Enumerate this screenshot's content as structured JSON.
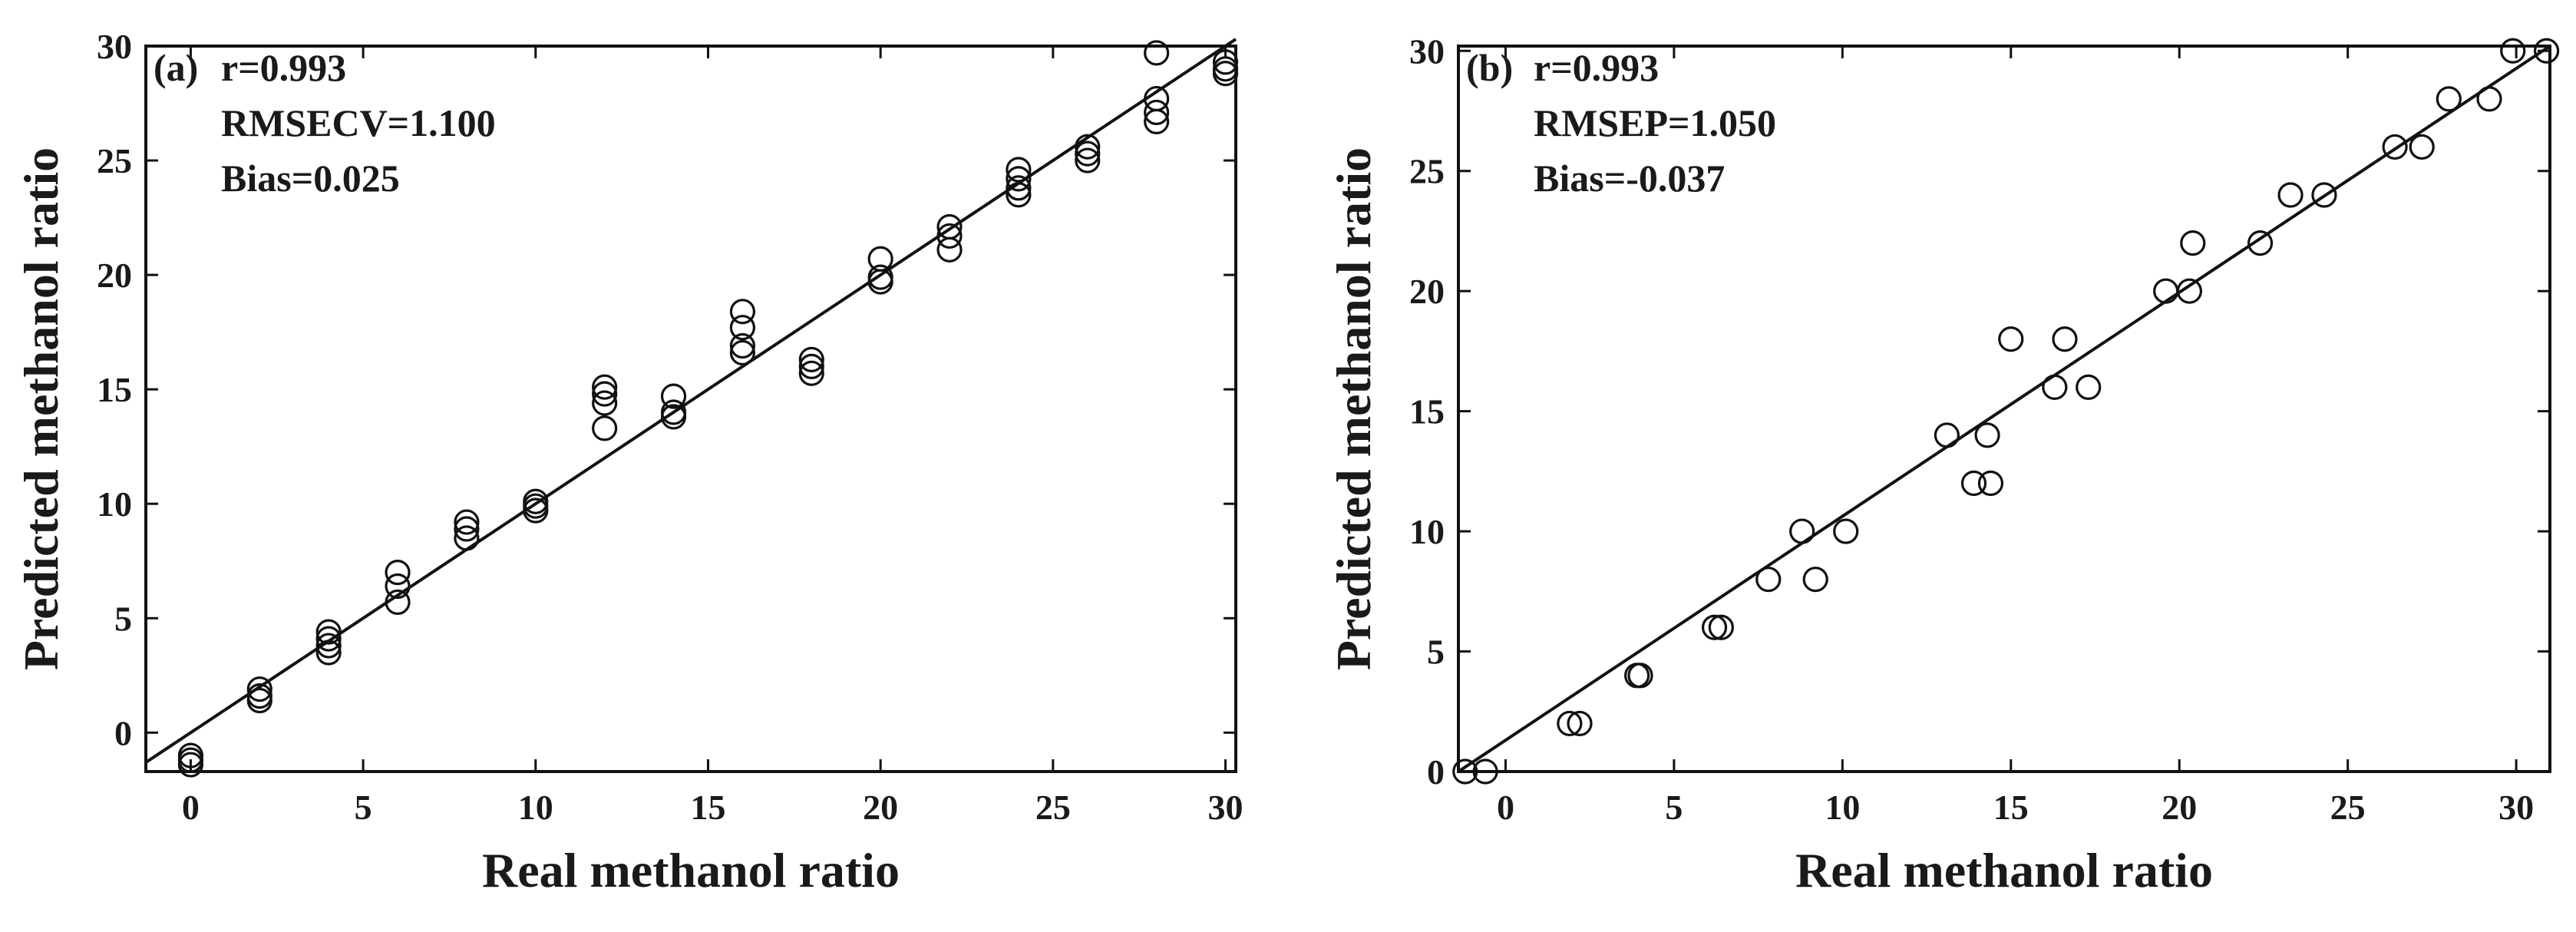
{
  "chart_data": [
    {
      "type": "scatter",
      "panel_label": "(a)",
      "annotations": [
        "r=0.993",
        "RMSECV=1.100",
        "Bias=0.025"
      ],
      "xlabel": "Real methanol ratio",
      "ylabel": "Predicted methanol ratio",
      "xlim": [
        -1.3,
        30.3
      ],
      "ylim": [
        -1.7,
        30
      ],
      "xticks": [
        0,
        5,
        10,
        15,
        20,
        25,
        30
      ],
      "yticks": [
        0,
        5,
        10,
        15,
        20,
        25,
        30
      ],
      "fit_line": {
        "x": [
          -1.3,
          30.3
        ],
        "y": [
          -1.3,
          30.3
        ]
      },
      "points": [
        [
          0,
          -1.0
        ],
        [
          0,
          -1.2
        ],
        [
          0,
          -1.4
        ],
        [
          2,
          1.9
        ],
        [
          2,
          1.6
        ],
        [
          2,
          1.4
        ],
        [
          4,
          4.4
        ],
        [
          4,
          4.1
        ],
        [
          4,
          3.8
        ],
        [
          4,
          3.5
        ],
        [
          6,
          7.0
        ],
        [
          6,
          6.4
        ],
        [
          6,
          5.7
        ],
        [
          8,
          9.2
        ],
        [
          8,
          8.9
        ],
        [
          8,
          8.5
        ],
        [
          10,
          10.1
        ],
        [
          10,
          9.9
        ],
        [
          10,
          9.7
        ],
        [
          12,
          15.1
        ],
        [
          12,
          14.8
        ],
        [
          12,
          14.4
        ],
        [
          12,
          13.3
        ],
        [
          14,
          14.7
        ],
        [
          14,
          14.0
        ],
        [
          14,
          13.8
        ],
        [
          16,
          18.4
        ],
        [
          16,
          17.7
        ],
        [
          16,
          16.9
        ],
        [
          16,
          16.6
        ],
        [
          18,
          16.3
        ],
        [
          18,
          16.0
        ],
        [
          18,
          15.7
        ],
        [
          20,
          20.7
        ],
        [
          20,
          19.9
        ],
        [
          20,
          19.7
        ],
        [
          22,
          22.1
        ],
        [
          22,
          21.7
        ],
        [
          22,
          21.1
        ],
        [
          24,
          24.6
        ],
        [
          24,
          24.2
        ],
        [
          24,
          23.8
        ],
        [
          24,
          23.5
        ],
        [
          26,
          25.6
        ],
        [
          26,
          25.3
        ],
        [
          26,
          25.0
        ],
        [
          28,
          29.7
        ],
        [
          28,
          27.7
        ],
        [
          28,
          27.1
        ],
        [
          28,
          26.7
        ],
        [
          30,
          29.3
        ],
        [
          30,
          29.0
        ],
        [
          30,
          28.8
        ]
      ]
    },
    {
      "type": "scatter",
      "panel_label": "(b)",
      "annotations": [
        "r=0.993",
        "RMSEP=1.050",
        "Bias=-0.037"
      ],
      "xlabel": "Real methanol ratio",
      "ylabel": "Predicted methanol ratio",
      "xlim": [
        -1.4,
        31
      ],
      "ylim": [
        0,
        30.2
      ],
      "xticks": [
        0,
        5,
        10,
        15,
        20,
        25,
        30
      ],
      "yticks": [
        0,
        5,
        10,
        15,
        20,
        25,
        30
      ],
      "fit_line": {
        "x": [
          -1.4,
          31
        ],
        "y": [
          0.0,
          30.2
        ]
      },
      "points": [
        [
          -1.2,
          0
        ],
        [
          -0.6,
          0
        ],
        [
          1.9,
          2
        ],
        [
          2.2,
          2
        ],
        [
          3.9,
          4
        ],
        [
          4.0,
          4
        ],
        [
          6.2,
          6
        ],
        [
          6.4,
          6
        ],
        [
          7.8,
          8
        ],
        [
          9.2,
          8
        ],
        [
          8.8,
          10
        ],
        [
          10.1,
          10
        ],
        [
          13.1,
          14
        ],
        [
          14.3,
          14
        ],
        [
          13.9,
          12
        ],
        [
          14.4,
          12
        ],
        [
          15.0,
          18
        ],
        [
          16.6,
          18
        ],
        [
          16.3,
          16
        ],
        [
          17.3,
          16
        ],
        [
          19.6,
          20
        ],
        [
          20.3,
          20
        ],
        [
          20.4,
          22
        ],
        [
          22.4,
          22
        ],
        [
          23.3,
          24
        ],
        [
          24.3,
          24
        ],
        [
          26.4,
          26
        ],
        [
          27.2,
          26
        ],
        [
          28.0,
          28
        ],
        [
          29.2,
          28
        ],
        [
          29.9,
          30
        ],
        [
          30.9,
          30
        ]
      ]
    }
  ]
}
